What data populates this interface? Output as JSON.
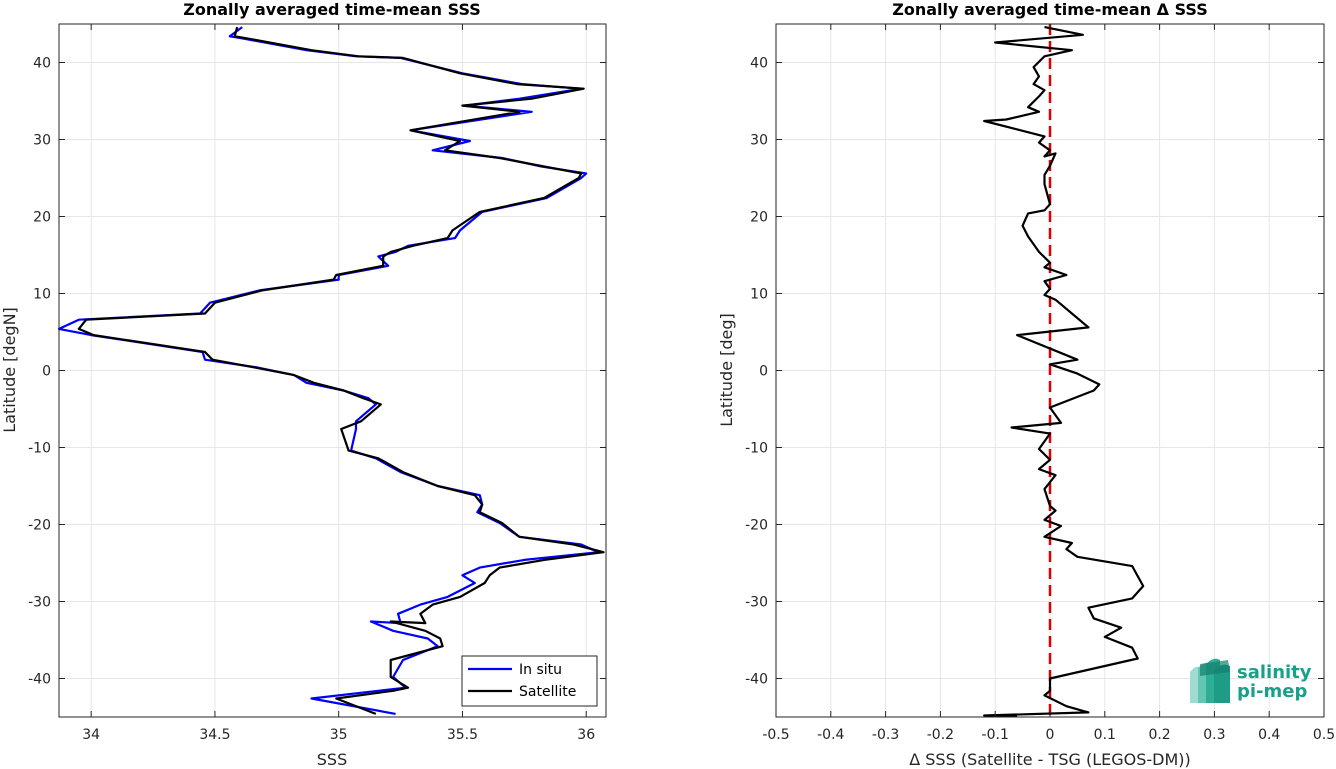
{
  "chart_data": [
    {
      "type": "line",
      "title": "Zonally averaged time-mean SSS",
      "xlabel": "SSS",
      "ylabel": "Latitude [degN]",
      "xlim": [
        33.87,
        36.08
      ],
      "ylim": [
        -45,
        45
      ],
      "xticks": [
        34,
        34.5,
        35,
        35.5,
        36
      ],
      "xtick_labels": [
        "34",
        "34.5",
        "35",
        "35.5",
        "36"
      ],
      "yticks": [
        -40,
        -30,
        -20,
        -10,
        0,
        10,
        20,
        30,
        40
      ],
      "ytick_labels": [
        "-40",
        "-30",
        "-20",
        "-10",
        "0",
        "10",
        "20",
        "30",
        "40"
      ],
      "grid": true,
      "legend": "bottom-right",
      "series": [
        {
          "name": "In situ",
          "color": "#0000ff",
          "x": [
            34.61,
            34.56,
            34.6,
            34.87,
            35.07,
            35.25,
            35.5,
            35.74,
            35.98,
            35.73,
            35.51,
            35.78,
            35.29,
            35.53,
            35.38,
            35.66,
            35.82,
            36.0,
            35.98,
            35.84,
            35.58,
            35.49,
            35.47,
            35.28,
            35.23,
            35.16,
            35.2,
            35.0,
            35.0,
            34.68,
            34.48,
            34.44,
            33.95,
            33.87,
            34.0,
            34.45,
            34.46,
            34.67,
            34.82,
            34.87,
            35.02,
            35.12,
            35.15,
            35.07,
            35.07,
            35.05,
            35.15,
            35.25,
            35.4,
            35.57,
            35.58,
            35.56,
            35.65,
            35.73,
            35.98,
            36.05,
            35.75,
            35.57,
            35.5,
            35.55,
            35.44,
            35.33,
            35.24,
            35.25,
            35.13,
            35.22,
            35.36,
            35.4,
            35.26,
            35.22,
            35.27,
            35.16,
            34.89,
            35.23
          ],
          "y": [
            44.6,
            43.4,
            43.2,
            41.6,
            40.8,
            40.6,
            38.6,
            37.2,
            36.6,
            35.3,
            34.4,
            33.6,
            31.2,
            29.8,
            28.6,
            27.6,
            26.5,
            25.6,
            25.0,
            22.4,
            20.6,
            18.2,
            17.2,
            16.2,
            15.4,
            14.8,
            13.6,
            12.4,
            11.8,
            10.4,
            8.8,
            7.4,
            6.6,
            5.4,
            4.6,
            2.4,
            1.4,
            0.4,
            -0.6,
            -1.6,
            -2.6,
            -3.6,
            -4.4,
            -6.6,
            -7.6,
            -10.4,
            -11.4,
            -13.2,
            -15.0,
            -16.2,
            -17.4,
            -18.4,
            -19.8,
            -21.6,
            -22.6,
            -23.6,
            -24.6,
            -25.6,
            -26.6,
            -27.6,
            -29.4,
            -30.4,
            -31.6,
            -32.8,
            -32.6,
            -33.8,
            -34.8,
            -35.8,
            -37.6,
            -39.8,
            -41.2,
            -41.6,
            -42.6,
            -44.6
          ]
        },
        {
          "name": "Satellite",
          "color": "#000000",
          "x": [
            34.59,
            34.58,
            34.62,
            34.89,
            35.08,
            35.26,
            35.49,
            35.72,
            35.99,
            35.78,
            35.5,
            35.73,
            35.29,
            35.49,
            35.43,
            35.65,
            35.83,
            35.98,
            35.97,
            35.83,
            35.57,
            35.46,
            35.44,
            35.3,
            35.21,
            35.18,
            35.18,
            34.99,
            34.98,
            34.69,
            34.5,
            34.46,
            33.98,
            33.95,
            34.01,
            34.46,
            34.49,
            34.66,
            34.82,
            34.9,
            35.02,
            35.1,
            35.17,
            35.09,
            35.01,
            35.04,
            35.16,
            35.26,
            35.4,
            35.55,
            35.58,
            35.57,
            35.66,
            35.73,
            35.95,
            36.07,
            35.83,
            35.65,
            35.61,
            35.59,
            35.49,
            35.38,
            35.33,
            35.35,
            35.21,
            35.35,
            35.41,
            35.42,
            35.21,
            35.21,
            35.28,
            35.22,
            34.99,
            35.15
          ],
          "y": [
            44.6,
            43.4,
            43.2,
            41.6,
            40.8,
            40.6,
            38.6,
            37.2,
            36.6,
            35.3,
            34.4,
            33.6,
            31.2,
            29.8,
            28.6,
            27.6,
            26.5,
            25.6,
            25.0,
            22.4,
            20.6,
            18.2,
            17.2,
            16.2,
            15.4,
            14.8,
            13.6,
            12.4,
            11.8,
            10.4,
            8.8,
            7.4,
            6.6,
            5.4,
            4.6,
            2.4,
            1.4,
            0.4,
            -0.6,
            -1.6,
            -2.6,
            -3.6,
            -4.4,
            -6.6,
            -7.6,
            -10.4,
            -11.4,
            -13.2,
            -15.0,
            -16.2,
            -17.4,
            -18.4,
            -19.8,
            -21.6,
            -22.6,
            -23.6,
            -24.6,
            -25.6,
            -26.6,
            -27.6,
            -29.4,
            -30.4,
            -31.6,
            -32.8,
            -32.6,
            -33.8,
            -34.8,
            -35.8,
            -37.6,
            -39.8,
            -41.2,
            -41.6,
            -42.6,
            -44.6
          ]
        }
      ]
    },
    {
      "type": "line",
      "title": "Zonally averaged time-mean Δ SSS",
      "xlabel": "Δ SSS (Satellite - TSG (LEGOS-DM))",
      "ylabel": "Latitude [deg]",
      "xlim": [
        -0.5,
        0.5
      ],
      "ylim": [
        -45,
        45
      ],
      "xticks": [
        -0.5,
        -0.4,
        -0.3,
        -0.2,
        -0.1,
        0,
        0.1,
        0.2,
        0.3,
        0.4,
        0.5
      ],
      "xtick_labels": [
        "-0.5",
        "-0.4",
        "-0.3",
        "-0.2",
        "-0.1",
        "0",
        "0.1",
        "0.2",
        "0.3",
        "0.4",
        "0.5"
      ],
      "yticks": [
        -40,
        -30,
        -20,
        -10,
        0,
        10,
        20,
        30,
        40
      ],
      "ytick_labels": [
        "-40",
        "-30",
        "-20",
        "-10",
        "0",
        "10",
        "20",
        "30",
        "40"
      ],
      "grid": true,
      "reference_line": {
        "x": 0,
        "color": "#dd0000",
        "style": "dashed"
      },
      "series": [
        {
          "color": "#000000",
          "x": [
            -0.01,
            0.06,
            -0.1,
            0.04,
            -0.01,
            -0.03,
            -0.02,
            -0.03,
            -0.01,
            -0.02,
            -0.04,
            -0.02,
            -0.08,
            -0.12,
            -0.01,
            -0.02,
            0.0,
            -0.01,
            0.01,
            0.0,
            -0.01,
            -0.01,
            0.0,
            -0.01,
            -0.04,
            -0.05,
            -0.04,
            -0.02,
            0.0,
            -0.01,
            0.03,
            -0.01,
            0.0,
            -0.01,
            0.01,
            0.07,
            -0.06,
            0.05,
            0.0,
            0.05,
            0.09,
            0.08,
            0.0,
            0.02,
            -0.07,
            0.0,
            -0.02,
            0.0,
            -0.02,
            0.01,
            -0.01,
            0.0,
            0.01,
            -0.01,
            0.02,
            -0.01,
            0.04,
            0.03,
            0.05,
            0.15,
            0.17,
            0.15,
            0.07,
            0.08,
            0.13,
            0.1,
            0.15,
            0.16,
            0.0,
            0.0,
            -0.01,
            0.03,
            0.07,
            -0.12,
            -0.06
          ],
          "y": [
            44.6,
            43.6,
            42.6,
            41.6,
            40.8,
            39.4,
            38.2,
            37.2,
            36.4,
            35.6,
            34.2,
            33.6,
            32.6,
            32.4,
            30.4,
            29.6,
            28.6,
            27.8,
            28.2,
            26.6,
            25.4,
            24.2,
            21.6,
            20.8,
            20.4,
            18.8,
            17.4,
            15.4,
            14.0,
            13.4,
            12.4,
            11.6,
            10.6,
            9.8,
            9.2,
            5.6,
            4.6,
            1.4,
            0.8,
            -0.4,
            -1.8,
            -2.6,
            -4.8,
            -6.8,
            -7.4,
            -8.2,
            -10.2,
            -11.6,
            -12.8,
            -13.6,
            -15.4,
            -17.6,
            -18.2,
            -19.4,
            -20.2,
            -21.6,
            -22.4,
            -23.2,
            -24.2,
            -25.4,
            -28.0,
            -29.6,
            -30.8,
            -32.2,
            -33.4,
            -34.6,
            -36.0,
            -37.4,
            -40.0,
            -41.6,
            -42.2,
            -43.6,
            -44.4,
            -44.8,
            -44.8
          ]
        }
      ]
    }
  ],
  "legend_entries": [
    "In situ",
    "Satellite"
  ],
  "logo": {
    "line1": "salinity",
    "line2": "pi-mep",
    "color": "#1aa08a"
  },
  "colors": {
    "insitu": "#0000ff",
    "satellite": "#000000",
    "zero_line": "#dd0000",
    "grid": "#e6e6e6",
    "axis": "#262626"
  }
}
